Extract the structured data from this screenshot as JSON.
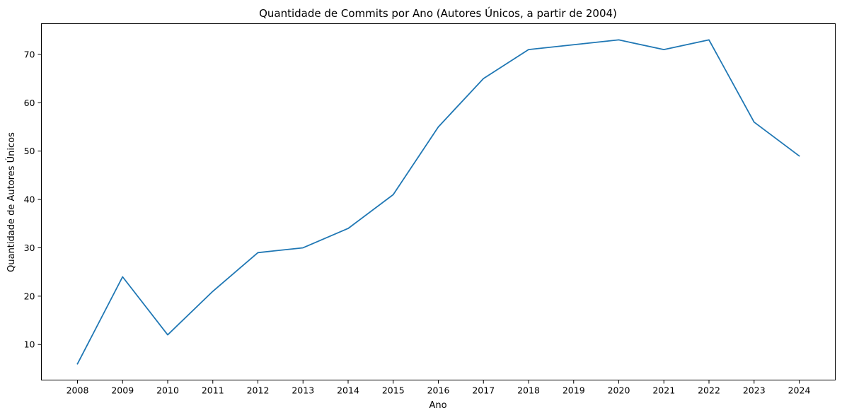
{
  "chart_data": {
    "type": "line",
    "title": "Quantidade de Commits por Ano (Autores Únicos, a partir de 2004)",
    "xlabel": "Ano",
    "ylabel": "Quantidade de Autores Únicos",
    "x": [
      2008,
      2009,
      2010,
      2011,
      2012,
      2013,
      2014,
      2015,
      2016,
      2017,
      2018,
      2019,
      2020,
      2021,
      2022,
      2023,
      2024
    ],
    "x_tick_labels": [
      "2008",
      "2009",
      "2010",
      "2011",
      "2012",
      "2013",
      "2014",
      "2015",
      "2016",
      "2017",
      "2018",
      "2019",
      "2020",
      "2021",
      "2022",
      "2023",
      "2024"
    ],
    "series": [
      {
        "values": [
          6,
          24,
          12,
          21,
          29,
          30,
          34,
          41,
          55,
          65,
          71,
          72,
          73,
          71,
          73,
          56,
          49
        ],
        "color": "#1f77b4"
      }
    ],
    "y_ticks": [
      10,
      20,
      30,
      40,
      50,
      60,
      70
    ],
    "y_tick_labels": [
      "10",
      "20",
      "30",
      "40",
      "50",
      "60",
      "70"
    ],
    "xlim": [
      2007.2,
      2024.8
    ],
    "ylim": [
      2.65,
      76.35
    ],
    "grid": false,
    "legend": "none"
  }
}
